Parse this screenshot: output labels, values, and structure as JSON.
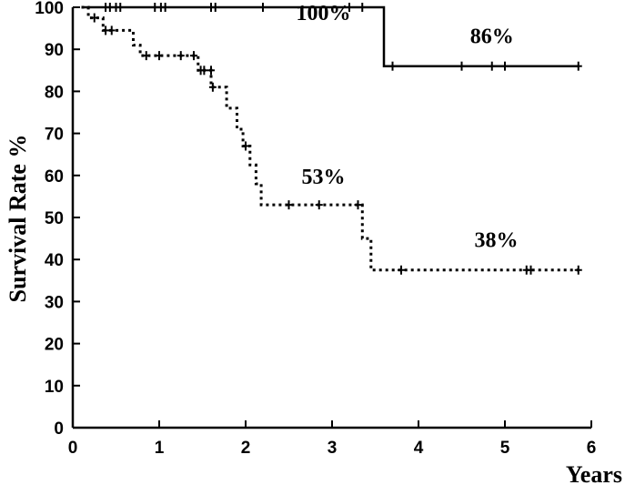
{
  "chart_data": {
    "type": "line",
    "title": "",
    "xlabel": "Years",
    "ylabel": "Survival Rate %",
    "xlim": [
      0,
      6
    ],
    "ylim": [
      0,
      100
    ],
    "xticks": [
      "0",
      "1",
      "2",
      "3",
      "4",
      "5",
      "6"
    ],
    "yticks": [
      "0",
      "10",
      "20",
      "30",
      "40",
      "50",
      "60",
      "70",
      "80",
      "90",
      "100"
    ],
    "grid": false,
    "legend": "none",
    "series": [
      {
        "style": "solid",
        "color": "#000000",
        "steps": [
          [
            0.1,
            100
          ],
          [
            3.6,
            100
          ],
          [
            3.6,
            86
          ],
          [
            5.85,
            86
          ]
        ],
        "censored": [
          [
            0.38,
            100
          ],
          [
            0.43,
            100
          ],
          [
            0.5,
            100
          ],
          [
            0.55,
            100
          ],
          [
            0.95,
            100
          ],
          [
            1.02,
            100
          ],
          [
            1.07,
            100
          ],
          [
            1.6,
            100
          ],
          [
            1.65,
            100
          ],
          [
            2.2,
            100
          ],
          [
            3.2,
            100
          ],
          [
            3.35,
            100
          ],
          [
            3.7,
            86
          ],
          [
            4.5,
            86
          ],
          [
            4.85,
            86
          ],
          [
            5.0,
            86
          ],
          [
            5.85,
            86
          ]
        ]
      },
      {
        "style": "dotted",
        "color": "#000000",
        "steps": [
          [
            0.1,
            100
          ],
          [
            0.18,
            100
          ],
          [
            0.18,
            97.5
          ],
          [
            0.35,
            97.5
          ],
          [
            0.35,
            94.5
          ],
          [
            0.7,
            94.5
          ],
          [
            0.7,
            91
          ],
          [
            0.78,
            91
          ],
          [
            0.78,
            88.5
          ],
          [
            1.45,
            88.5
          ],
          [
            1.45,
            85
          ],
          [
            1.6,
            85
          ],
          [
            1.6,
            81
          ],
          [
            1.78,
            81
          ],
          [
            1.78,
            76
          ],
          [
            1.9,
            76
          ],
          [
            1.9,
            71
          ],
          [
            1.97,
            71
          ],
          [
            1.97,
            67
          ],
          [
            2.05,
            67
          ],
          [
            2.05,
            62.5
          ],
          [
            2.12,
            62.5
          ],
          [
            2.12,
            58
          ],
          [
            2.18,
            58
          ],
          [
            2.18,
            53
          ],
          [
            3.35,
            53
          ],
          [
            3.35,
            45
          ],
          [
            3.45,
            45
          ],
          [
            3.45,
            37.5
          ],
          [
            5.85,
            37.5
          ]
        ],
        "censored": [
          [
            0.25,
            97.5
          ],
          [
            0.38,
            94.5
          ],
          [
            0.45,
            94.5
          ],
          [
            0.85,
            88.5
          ],
          [
            1.0,
            88.5
          ],
          [
            1.25,
            88.5
          ],
          [
            1.4,
            88.5
          ],
          [
            1.48,
            85
          ],
          [
            1.52,
            85
          ],
          [
            1.6,
            85
          ],
          [
            1.62,
            81
          ],
          [
            2.0,
            67
          ],
          [
            2.5,
            53
          ],
          [
            2.85,
            53
          ],
          [
            3.3,
            53
          ],
          [
            3.8,
            37.5
          ],
          [
            5.25,
            37.5
          ],
          [
            5.3,
            37.5
          ],
          [
            5.85,
            37.5
          ]
        ]
      }
    ],
    "annotations": [
      {
        "text": "100%",
        "x": 2.9,
        "y": 97
      },
      {
        "text": "86%",
        "x": 4.85,
        "y": 91.5
      },
      {
        "text": "53%",
        "x": 2.9,
        "y": 58
      },
      {
        "text": "38%",
        "x": 4.9,
        "y": 43
      }
    ]
  }
}
